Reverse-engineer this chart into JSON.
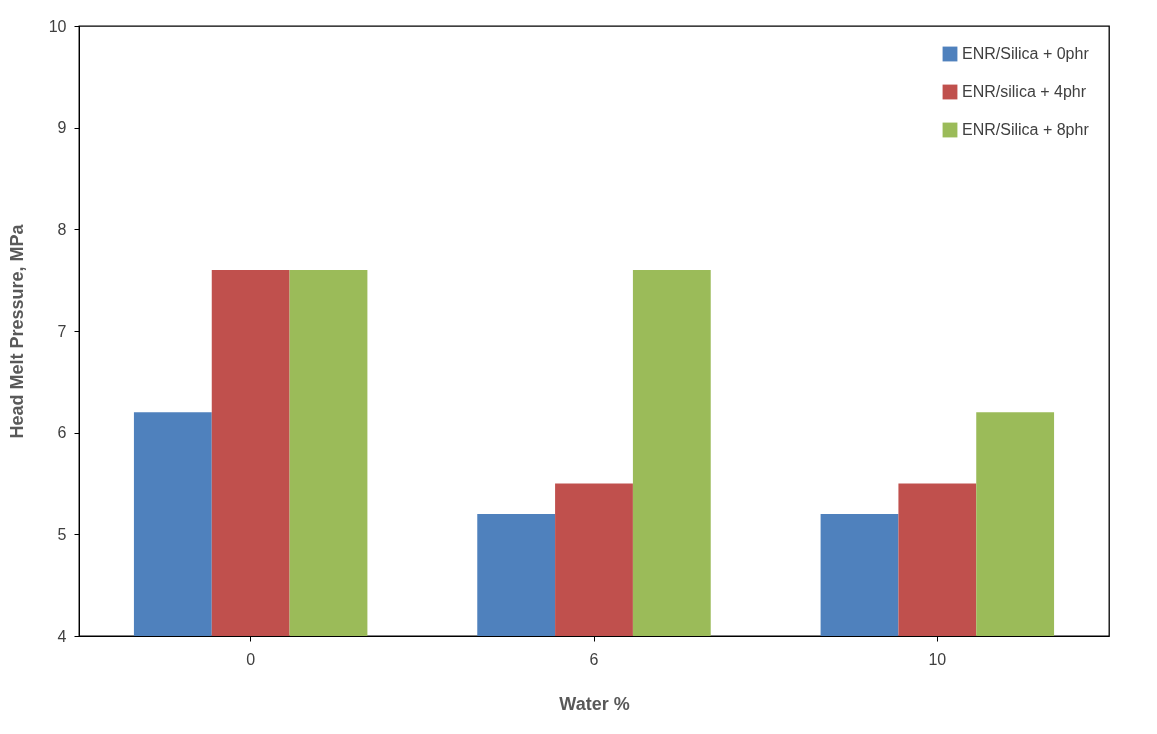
{
  "chart_data": {
    "type": "bar",
    "xlabel": "Water %",
    "ylabel": "Head Melt Pressure, MPa",
    "categories": [
      "0",
      "6",
      "10"
    ],
    "series": [
      {
        "name": "ENR/Silica + 0phr",
        "color": "#4f81bd",
        "values": [
          6.2,
          5.2,
          5.2
        ]
      },
      {
        "name": "ENR/silica + 4phr",
        "color": "#c0504d",
        "values": [
          7.6,
          5.5,
          5.5
        ]
      },
      {
        "name": "ENR/Silica + 8phr",
        "color": "#9bbb59",
        "values": [
          7.6,
          7.6,
          6.2
        ]
      }
    ],
    "ylim": [
      4,
      10
    ],
    "yticks": [
      4,
      5,
      6,
      7,
      8,
      9,
      10
    ],
    "grid": false,
    "legend": "top right"
  }
}
